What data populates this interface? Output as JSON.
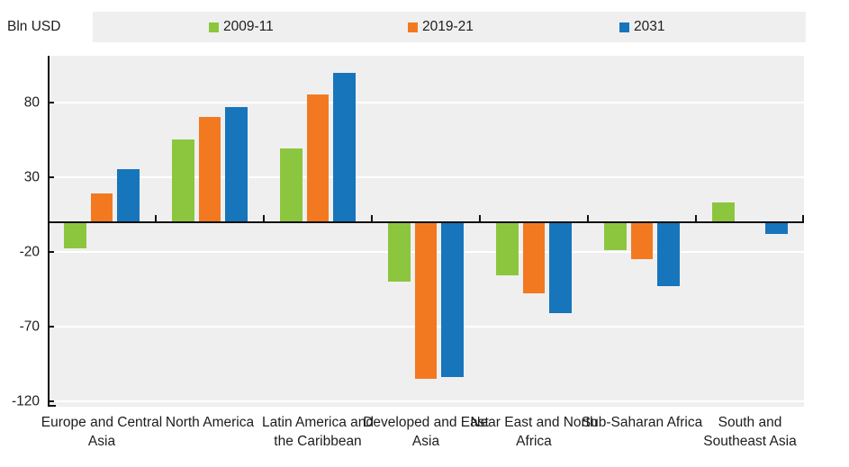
{
  "unit_label": "Bln USD",
  "colors": {
    "green_2009_11": "#8CC63E",
    "orange_2019_21": "#F37921",
    "blue_2031": "#1775BC",
    "plot_background": "#F0EFEF",
    "legend_background": "#EFEFEF",
    "gridline": "#FFFFFF",
    "axis": "#111111",
    "text": "#1D1D1F"
  },
  "chart_data": {
    "type": "bar",
    "unit_label": "Bln USD",
    "legend_position": "top",
    "grid": true,
    "plot_background": "#F0EFEF",
    "gridline_color": "#FFFFFF",
    "categories": [
      "Europe and Central Asia",
      "North America",
      "Latin America and the Caribbean",
      "Developed and East Asia",
      "Near East and North Africa",
      "Sub-Saharan Africa",
      "South and Southeast Asia"
    ],
    "category_label_lines": [
      [
        "Europe and Central",
        "Asia"
      ],
      [
        "North America"
      ],
      [
        "Latin America and",
        "the Caribbean"
      ],
      [
        "Developed and East",
        "Asia"
      ],
      [
        "Near East and North",
        "Africa"
      ],
      [
        "Sub-Saharan Africa"
      ],
      [
        "South and",
        "Southeast Asia"
      ]
    ],
    "series": [
      {
        "name": "2009-11",
        "color": "#8CC63E",
        "values": [
          -18,
          55,
          49,
          -40,
          -36,
          -19,
          13
        ]
      },
      {
        "name": "2019-21",
        "color": "#F37921",
        "values": [
          19,
          70,
          85,
          -105,
          -48,
          -25,
          0
        ]
      },
      {
        "name": "2031",
        "color": "#1775BC",
        "values": [
          35,
          77,
          100,
          -104,
          -61,
          -43,
          -8
        ]
      }
    ],
    "y_ticks": [
      80,
      30,
      -20,
      -70,
      -120
    ],
    "ylim": [
      -124,
      111
    ]
  }
}
